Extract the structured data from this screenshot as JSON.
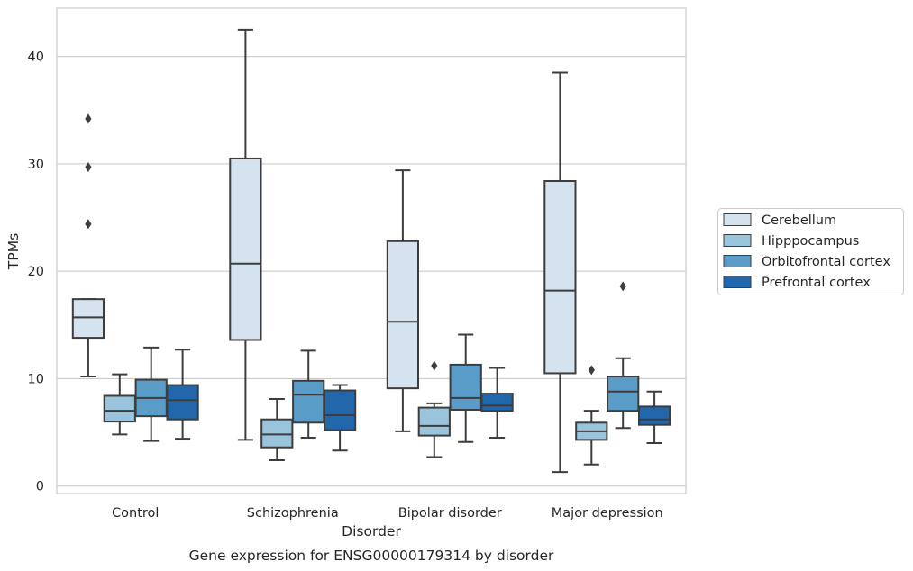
{
  "caption": "Gene expression for ENSG00000179314 by disorder",
  "chart_data": {
    "type": "box",
    "title": "",
    "xlabel": "Disorder",
    "ylabel": "TPMs",
    "ylim": [
      -0.7,
      44.5
    ],
    "yticks": [
      0,
      10,
      20,
      30,
      40
    ],
    "grid": "horizontal",
    "legend_position": "right",
    "categories": [
      "Control",
      "Schizophrenia",
      "Bipolar disorder",
      "Major depression"
    ],
    "series": [
      {
        "name": "Cerebellum",
        "color": "#d5e3f1",
        "boxes": [
          {
            "whisker_low": 10.2,
            "q1": 13.8,
            "median": 15.7,
            "q3": 17.4,
            "whisker_high": 17.4,
            "outliers": [
              24.4,
              29.7,
              34.2
            ]
          },
          {
            "whisker_low": 4.3,
            "q1": 13.6,
            "median": 20.7,
            "q3": 30.5,
            "whisker_high": 42.5,
            "outliers": []
          },
          {
            "whisker_low": 5.1,
            "q1": 9.1,
            "median": 15.3,
            "q3": 22.8,
            "whisker_high": 29.4,
            "outliers": []
          },
          {
            "whisker_low": 1.3,
            "q1": 10.5,
            "median": 18.2,
            "q3": 28.4,
            "whisker_high": 38.5,
            "outliers": []
          }
        ]
      },
      {
        "name": "Hipppocampus",
        "color": "#9ac3dc",
        "boxes": [
          {
            "whisker_low": 4.8,
            "q1": 6.0,
            "median": 7.0,
            "q3": 8.4,
            "whisker_high": 10.4,
            "outliers": []
          },
          {
            "whisker_low": 2.4,
            "q1": 3.6,
            "median": 4.8,
            "q3": 6.2,
            "whisker_high": 8.1,
            "outliers": []
          },
          {
            "whisker_low": 2.7,
            "q1": 4.7,
            "median": 5.6,
            "q3": 7.3,
            "whisker_high": 7.7,
            "outliers": [
              11.2
            ]
          },
          {
            "whisker_low": 2.0,
            "q1": 4.3,
            "median": 5.1,
            "q3": 5.9,
            "whisker_high": 7.0,
            "outliers": [
              10.8
            ]
          }
        ]
      },
      {
        "name": "Orbitofrontal cortex",
        "color": "#5a9cc8",
        "boxes": [
          {
            "whisker_low": 4.2,
            "q1": 6.5,
            "median": 8.2,
            "q3": 9.9,
            "whisker_high": 12.9,
            "outliers": []
          },
          {
            "whisker_low": 4.5,
            "q1": 5.9,
            "median": 8.5,
            "q3": 9.8,
            "whisker_high": 12.6,
            "outliers": []
          },
          {
            "whisker_low": 4.1,
            "q1": 7.1,
            "median": 8.2,
            "q3": 11.3,
            "whisker_high": 14.1,
            "outliers": []
          },
          {
            "whisker_low": 5.4,
            "q1": 7.0,
            "median": 8.8,
            "q3": 10.2,
            "whisker_high": 11.9,
            "outliers": [
              18.6
            ]
          }
        ]
      },
      {
        "name": "Prefrontal cortex",
        "color": "#2266ac",
        "boxes": [
          {
            "whisker_low": 4.4,
            "q1": 6.2,
            "median": 8.0,
            "q3": 9.4,
            "whisker_high": 12.7,
            "outliers": []
          },
          {
            "whisker_low": 3.3,
            "q1": 5.2,
            "median": 6.6,
            "q3": 8.9,
            "whisker_high": 9.4,
            "outliers": []
          },
          {
            "whisker_low": 4.5,
            "q1": 7.0,
            "median": 7.5,
            "q3": 8.6,
            "whisker_high": 11.0,
            "outliers": []
          },
          {
            "whisker_low": 4.0,
            "q1": 5.7,
            "median": 6.2,
            "q3": 7.4,
            "whisker_high": 8.8,
            "outliers": []
          }
        ]
      }
    ]
  }
}
